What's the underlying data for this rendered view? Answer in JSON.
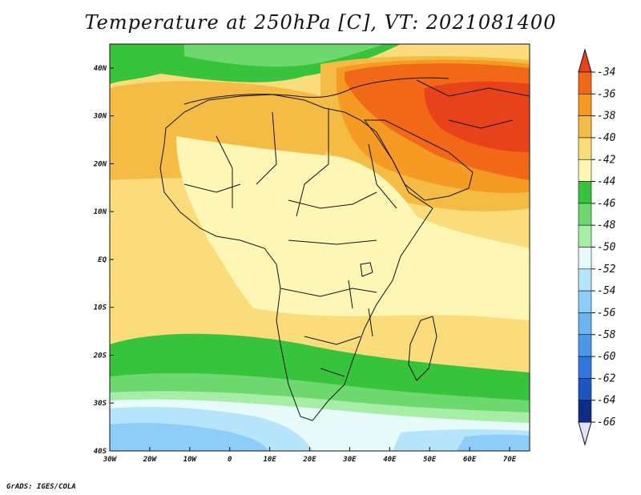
{
  "title": "Temperature at 250hPa [C], VT: 2021081400",
  "credit": "GrADS: IGES/COLA",
  "map": {
    "lon_range": [
      -30,
      75
    ],
    "lat_range": [
      -40,
      45
    ],
    "lon_ticks": [
      {
        "value": -30,
        "label": "30W"
      },
      {
        "value": -20,
        "label": "20W"
      },
      {
        "value": -10,
        "label": "10W"
      },
      {
        "value": 0,
        "label": "0"
      },
      {
        "value": 10,
        "label": "10E"
      },
      {
        "value": 20,
        "label": "20E"
      },
      {
        "value": 30,
        "label": "30E"
      },
      {
        "value": 40,
        "label": "40E"
      },
      {
        "value": 50,
        "label": "50E"
      },
      {
        "value": 60,
        "label": "60E"
      },
      {
        "value": 70,
        "label": "70E"
      }
    ],
    "lat_ticks": [
      {
        "value": 40,
        "label": "40N"
      },
      {
        "value": 30,
        "label": "30N"
      },
      {
        "value": 20,
        "label": "20N"
      },
      {
        "value": 10,
        "label": "10N"
      },
      {
        "value": 0,
        "label": "EQ"
      },
      {
        "value": -10,
        "label": "10S"
      },
      {
        "value": -20,
        "label": "20S"
      },
      {
        "value": -30,
        "label": "30S"
      },
      {
        "value": -40,
        "label": "40S"
      }
    ]
  },
  "colorbar": {
    "levels": [
      "-34",
      "-36",
      "-38",
      "-40",
      "-42",
      "-44",
      "-46",
      "-48",
      "-50",
      "-52",
      "-54",
      "-56",
      "-58",
      "-60",
      "-62",
      "-64",
      "-66"
    ],
    "colors": [
      "#e8421a",
      "#f06818",
      "#f59a22",
      "#f4bb45",
      "#fadc7a",
      "#fdf6b4",
      "#37c33b",
      "#6dd86d",
      "#a6eda6",
      "#e6fbfa",
      "#b6e4fb",
      "#8dcdf8",
      "#6bb4f4",
      "#4a98ec",
      "#2f78dc",
      "#1a55c2",
      "#0d2c8a",
      "#e0e0ff"
    ]
  },
  "field_colors": {
    "top_hot": "#e8421a",
    "hot": "#f06818",
    "warm_orange": "#f59a22",
    "orange": "#f4bb45",
    "light_orange": "#fadc7a",
    "cream": "#fdf6b4",
    "green": "#37c33b",
    "light_green": "#6dd86d",
    "pale_green": "#a6eda6",
    "white_blue": "#e6fbfa",
    "light_blue": "#b6e4fb",
    "blue": "#8dcdf8",
    "mid_blue": "#6bb4f4"
  }
}
